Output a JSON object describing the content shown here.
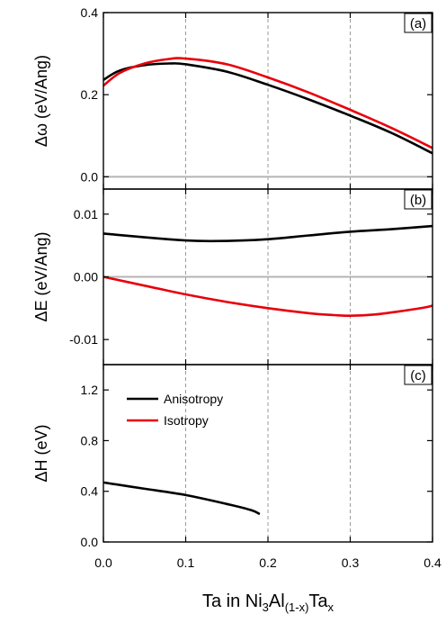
{
  "chart_data": {
    "type": "line",
    "xlabel": {
      "main": "Ta in Ni",
      "sub1": "3",
      "mid": "Al",
      "sub2": "(1-x)",
      "end": "Ta",
      "sub3": "x"
    },
    "xlim": [
      0.0,
      0.4
    ],
    "xticks": [
      "0.0",
      "0.1",
      "0.2",
      "0.3",
      "0.4"
    ],
    "vertical_gridlines": [
      0.1,
      0.2,
      0.3
    ],
    "grid": "dashed vertical at 0.1, 0.2, 0.3",
    "colors": {
      "anisotropy": "#000000",
      "isotropy": "#e8000b",
      "zero_line": "#b4b4b4"
    },
    "legend": {
      "placement": "top-left of panel (c)",
      "entries": [
        {
          "label": "Anisotropy",
          "color": "#000000"
        },
        {
          "label": "Isotropy",
          "color": "#e8000b"
        }
      ]
    },
    "panels": [
      {
        "tag": "(a)",
        "ylabel": "Δω (eV/Ang)",
        "ylim": [
          -0.03,
          0.4
        ],
        "yticks": [
          0.0,
          0.2,
          0.4
        ],
        "ytick_labels": [
          "0.0",
          "0.2",
          "0.4"
        ],
        "zero_line": true,
        "series": [
          {
            "key": "anisotropy",
            "x": [
              0.0,
              0.02,
              0.05,
              0.08,
              0.1,
              0.15,
              0.2,
              0.25,
              0.3,
              0.35,
              0.4
            ],
            "y": [
              0.236,
              0.259,
              0.272,
              0.276,
              0.274,
              0.256,
              0.224,
              0.188,
              0.149,
              0.107,
              0.057
            ]
          },
          {
            "key": "isotropy",
            "x": [
              0.0,
              0.02,
              0.05,
              0.08,
              0.1,
              0.15,
              0.2,
              0.25,
              0.3,
              0.35,
              0.4
            ],
            "y": [
              0.222,
              0.253,
              0.276,
              0.287,
              0.288,
              0.274,
              0.242,
              0.205,
              0.163,
              0.119,
              0.07
            ]
          }
        ]
      },
      {
        "tag": "(b)",
        "ylabel": "ΔE (eV/Ang)",
        "ylim": [
          -0.014,
          0.014
        ],
        "yticks": [
          0.01,
          0.0,
          -0.01
        ],
        "ytick_labels": [
          "0.01",
          "0.00",
          "-0.01"
        ],
        "zero_line": true,
        "series": [
          {
            "key": "anisotropy",
            "x": [
              0.0,
              0.05,
              0.1,
              0.13,
              0.17,
              0.2,
              0.25,
              0.3,
              0.35,
              0.4
            ],
            "y": [
              0.0069,
              0.0063,
              0.0058,
              0.0057,
              0.0058,
              0.006,
              0.0066,
              0.0072,
              0.0076,
              0.0081
            ]
          },
          {
            "key": "isotropy",
            "x": [
              0.0,
              0.05,
              0.1,
              0.15,
              0.2,
              0.25,
              0.28,
              0.3,
              0.33,
              0.36,
              0.39,
              0.4
            ],
            "y": [
              0.0,
              -0.0014,
              -0.0028,
              -0.004,
              -0.005,
              -0.0058,
              -0.0061,
              -0.0062,
              -0.006,
              -0.0055,
              -0.0049,
              -0.0046
            ]
          }
        ]
      },
      {
        "tag": "(c)",
        "ylabel": "ΔH (eV)",
        "ylim": [
          0.0,
          1.4
        ],
        "yticks": [
          0.0,
          0.4,
          0.8,
          1.2
        ],
        "ytick_labels": [
          "0.0",
          "0.4",
          "0.8",
          "1.2"
        ],
        "zero_line": false,
        "series": [
          {
            "key": "anisotropy",
            "x": [
              0.0,
              0.05,
              0.1,
              0.15,
              0.18,
              0.19
            ],
            "y": [
              0.47,
              0.42,
              0.37,
              0.3,
              0.25,
              0.22
            ]
          }
        ]
      }
    ]
  }
}
